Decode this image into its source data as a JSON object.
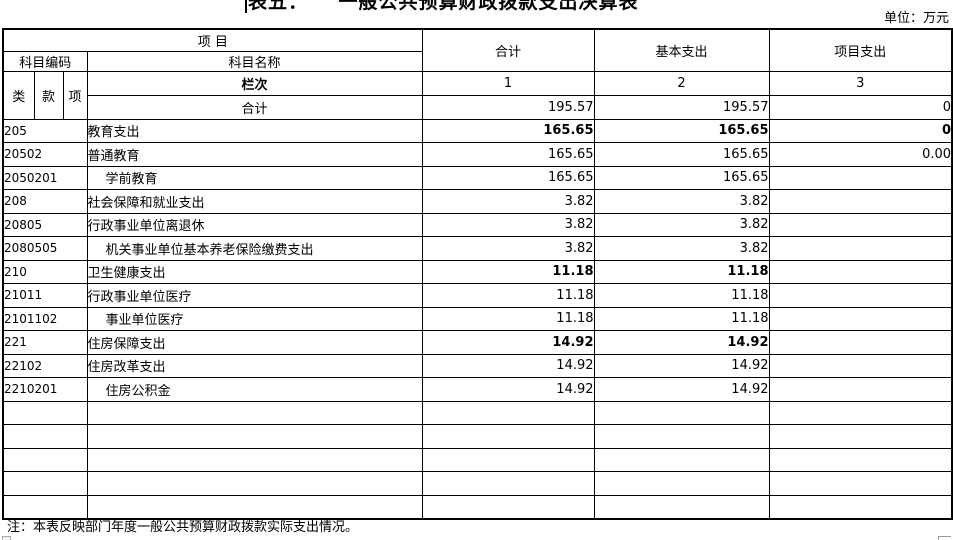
{
  "title": "表五：　　一般公共预算财政拨款支出决算表",
  "unit_label": "单位：万元",
  "note": "注：本表反映部门年度一般公共预算财政拨款实际支出情况。",
  "table": {
    "header": {
      "project": "项 目",
      "subject_code": "科目编码",
      "subject_name": "科目名称",
      "col_class": "类",
      "col_section": "款",
      "col_item": "项",
      "lane_label": "栏次",
      "total": "合计",
      "basic": "基本支出",
      "project_exp": "项目支出",
      "col_no_1": "1",
      "col_no_2": "2",
      "col_no_3": "3"
    },
    "total_row": {
      "name": "合计",
      "total": "195.57",
      "basic": "195.57",
      "project": "0"
    },
    "rows": [
      {
        "code": "205",
        "name": "教育支出",
        "indent": false,
        "bold": true,
        "total": "165.65",
        "basic": "165.65",
        "project": "0"
      },
      {
        "code": "20502",
        "name": "普通教育",
        "indent": false,
        "bold": false,
        "total": "165.65",
        "basic": "165.65",
        "project": "0.00"
      },
      {
        "code": "2050201",
        "name": "学前教育",
        "indent": true,
        "bold": false,
        "total": "165.65",
        "basic": "165.65",
        "project": ""
      },
      {
        "code": "208",
        "name": "社会保障和就业支出",
        "indent": false,
        "bold": false,
        "total": "3.82",
        "basic": "3.82",
        "project": ""
      },
      {
        "code": "20805",
        "name": "行政事业单位离退休",
        "indent": false,
        "bold": false,
        "total": "3.82",
        "basic": "3.82",
        "project": ""
      },
      {
        "code": "2080505",
        "name": "机关事业单位基本养老保险缴费支出",
        "indent": true,
        "bold": false,
        "total": "3.82",
        "basic": "3.82",
        "project": ""
      },
      {
        "code": "210",
        "name": "卫生健康支出",
        "indent": false,
        "bold": true,
        "total": "11.18",
        "basic": "11.18",
        "project": ""
      },
      {
        "code": "21011",
        "name": "行政事业单位医疗",
        "indent": false,
        "bold": false,
        "total": "11.18",
        "basic": "11.18",
        "project": ""
      },
      {
        "code": "2101102",
        "name": "事业单位医疗",
        "indent": true,
        "bold": false,
        "total": "11.18",
        "basic": "11.18",
        "project": ""
      },
      {
        "code": "221",
        "name": "住房保障支出",
        "indent": false,
        "bold": true,
        "total": "14.92",
        "basic": "14.92",
        "project": ""
      },
      {
        "code": "22102",
        "name": "住房改革支出",
        "indent": false,
        "bold": false,
        "total": "14.92",
        "basic": "14.92",
        "project": ""
      },
      {
        "code": "2210201",
        "name": "住房公积金",
        "indent": true,
        "bold": false,
        "total": "14.92",
        "basic": "14.92",
        "project": ""
      },
      {
        "code": "",
        "name": "",
        "indent": false,
        "bold": false,
        "total": "",
        "basic": "",
        "project": ""
      },
      {
        "code": "",
        "name": "",
        "indent": false,
        "bold": false,
        "total": "",
        "basic": "",
        "project": ""
      },
      {
        "code": "",
        "name": "",
        "indent": false,
        "bold": false,
        "total": "",
        "basic": "",
        "project": ""
      },
      {
        "code": "",
        "name": "",
        "indent": false,
        "bold": false,
        "total": "",
        "basic": "",
        "project": ""
      },
      {
        "code": "",
        "name": "",
        "indent": false,
        "bold": false,
        "total": "",
        "basic": "",
        "project": ""
      }
    ]
  }
}
